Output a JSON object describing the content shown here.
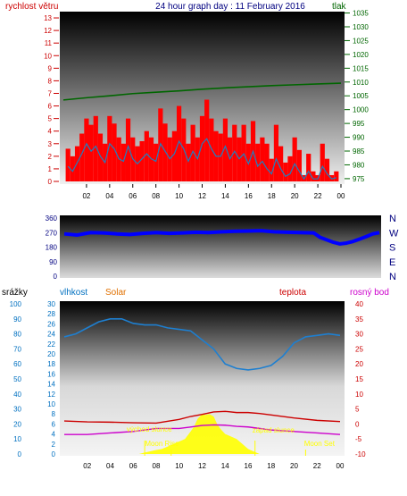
{
  "header": {
    "left": "rychlost větru",
    "title": "24 hour graph day : 11 February 2016",
    "right": "tlak"
  },
  "colors": {
    "wind_axis": "#cc0000",
    "pressure_axis": "#006600",
    "title": "#000080",
    "wind_gust": "#ff0000",
    "wind_avg": "#1f7fc0",
    "pressure": "#006600",
    "direction": "#0000ff",
    "humidity": "#1e7fd0",
    "temperature": "#cc0000",
    "dewpoint": "#cc00cc",
    "solar": "#ffff00",
    "rain": "#0000ff",
    "label_blue": "#0070c0",
    "label_orange": "#e07000",
    "label_red": "#cc0000",
    "label_magenta": "#cc00cc",
    "annot": "#ffff00"
  },
  "chart_data": [
    {
      "type": "line",
      "panel": "wind-pressure",
      "x_ticks": [
        "02",
        "04",
        "06",
        "08",
        "10",
        "12",
        "14",
        "16",
        "18",
        "20",
        "22",
        "00"
      ],
      "y_left": {
        "label": "rychlost větru",
        "ticks": [
          0,
          1,
          2,
          3,
          4,
          5,
          6,
          7,
          8,
          9,
          10,
          11,
          12,
          13
        ],
        "range": [
          0,
          13.5
        ]
      },
      "y_right": {
        "label": "tlak",
        "ticks": [
          975,
          980,
          985,
          990,
          995,
          1000,
          1005,
          1010,
          1015,
          1020,
          1025,
          1030,
          1035
        ],
        "range": [
          974,
          1035.5
        ]
      },
      "series": [
        {
          "axis": "left",
          "x": [
            0.4,
            0.8,
            1.2,
            1.6,
            2,
            2.4,
            2.8,
            3.2,
            3.6,
            4,
            4.4,
            4.8,
            5.2,
            5.6,
            6,
            6.4,
            6.8,
            7.2,
            7.6,
            8,
            8.4,
            8.8,
            9.2,
            9.6,
            10,
            10.4,
            10.8,
            11.2,
            11.6,
            12,
            12.4,
            12.8,
            13.2,
            13.6,
            14,
            14.4,
            14.8,
            15.2,
            15.6,
            16,
            16.4,
            16.8,
            17.2,
            17.6,
            18,
            18.4,
            18.8,
            19.2,
            19.6,
            20,
            20.4,
            20.8,
            21.2,
            21.6,
            22,
            22.4,
            22.8,
            23.2,
            23.6
          ],
          "values": [
            2.6,
            2.0,
            2.8,
            3.8,
            5.0,
            4.5,
            5.2,
            3.8,
            3.0,
            5.2,
            4.6,
            3.5,
            3.0,
            5.0,
            3.5,
            2.8,
            3.2,
            4.0,
            3.5,
            3.0,
            5.8,
            4.6,
            3.5,
            4.0,
            6.0,
            5.0,
            3.0,
            4.5,
            3.5,
            5.2,
            6.5,
            5.0,
            4.0,
            3.8,
            5.0,
            3.5,
            4.5,
            3.5,
            4.5,
            3.0,
            4.8,
            3.0,
            3.5,
            3.0,
            1.8,
            4.5,
            2.8,
            1.5,
            2.0,
            3.5,
            2.5,
            0.5,
            2.2,
            0.8,
            0.5,
            3.0,
            1.8,
            0.5,
            0.8
          ]
        },
        {
          "axis": "left",
          "x": [
            0.4,
            0.8,
            1.2,
            1.6,
            2,
            2.4,
            2.8,
            3.2,
            3.6,
            4,
            4.4,
            4.8,
            5.2,
            5.6,
            6,
            6.4,
            6.8,
            7.2,
            7.6,
            8,
            8.4,
            8.8,
            9.2,
            9.6,
            10,
            10.4,
            10.8,
            11.2,
            11.6,
            12,
            12.4,
            12.8,
            13.2,
            13.6,
            14,
            14.4,
            14.8,
            15.2,
            15.6,
            16,
            16.4,
            16.8,
            17.2,
            17.6,
            18,
            18.4,
            18.8,
            19.2,
            19.6,
            20,
            20.4,
            20.8,
            21.2,
            21.6,
            22,
            22.4,
            22.8,
            23.2,
            23.6
          ],
          "values": [
            1.2,
            0.8,
            1.5,
            2.2,
            3.0,
            2.4,
            2.8,
            2.0,
            1.5,
            3.0,
            2.6,
            1.8,
            1.6,
            2.8,
            1.8,
            1.4,
            1.8,
            2.2,
            1.8,
            1.6,
            3.0,
            2.4,
            1.8,
            2.2,
            3.2,
            2.6,
            1.6,
            2.4,
            1.8,
            3.0,
            3.4,
            2.6,
            2.0,
            2.0,
            2.8,
            1.8,
            2.4,
            1.8,
            2.2,
            1.4,
            2.4,
            1.2,
            1.6,
            1.0,
            0.6,
            1.8,
            1.0,
            0.4,
            0.6,
            1.4,
            0.8,
            0.2,
            0.8,
            0.2,
            0.2,
            1.2,
            0.6,
            0.2,
            0.3
          ]
        },
        {
          "axis": "right",
          "x": [
            0,
            2,
            4,
            6,
            8,
            10,
            12,
            14,
            16,
            18,
            20,
            22,
            24
          ],
          "values": [
            1003.5,
            1004.3,
            1005.0,
            1005.8,
            1006.3,
            1006.8,
            1007.4,
            1007.9,
            1008.3,
            1008.7,
            1009.0,
            1009.3,
            1009.6
          ]
        }
      ]
    },
    {
      "type": "scatter",
      "panel": "wind-direction",
      "x_ticks": [
        "02",
        "04",
        "06",
        "08",
        "10",
        "12",
        "14",
        "16",
        "18",
        "20",
        "22",
        "00"
      ],
      "y_left": {
        "ticks": [
          0,
          90,
          180,
          270,
          360
        ],
        "range": [
          0,
          360
        ]
      },
      "y_right": {
        "ticks": [
          "N",
          "W",
          "S",
          "E",
          "N"
        ]
      },
      "series": [
        {
          "x": [
            0,
            1,
            2,
            3,
            4,
            5,
            6,
            7,
            8,
            9,
            10,
            11,
            12,
            13,
            14,
            15,
            16,
            17,
            18,
            19,
            19.5,
            20,
            20.5,
            21,
            21.5,
            22,
            22.5,
            23,
            23.5,
            24
          ],
          "values": [
            262,
            255,
            270,
            268,
            262,
            258,
            265,
            270,
            265,
            268,
            272,
            270,
            275,
            278,
            280,
            282,
            275,
            272,
            270,
            268,
            240,
            225,
            210,
            200,
            205,
            215,
            230,
            245,
            262,
            270
          ]
        }
      ]
    },
    {
      "type": "line",
      "panel": "humidity-temp-solar",
      "labels": {
        "rain": "srážky",
        "humidity": "vlhkost",
        "solar": "Solar",
        "temperature": "teplota",
        "dewpoint": "rosný bod"
      },
      "x_ticks": [
        "02",
        "04",
        "06",
        "08",
        "10",
        "12",
        "14",
        "16",
        "18",
        "20",
        "22",
        "00"
      ],
      "y_rain": {
        "ticks": [
          0,
          10,
          20,
          30,
          40,
          50,
          60,
          70,
          80,
          90,
          100
        ],
        "range": [
          0,
          100
        ]
      },
      "y_humidity": {
        "ticks": [
          0,
          2,
          4,
          6,
          8,
          10,
          12,
          14,
          16,
          18,
          20,
          22,
          24,
          26,
          28,
          30
        ],
        "range": [
          0,
          30
        ]
      },
      "y_temp": {
        "ticks": [
          -10,
          -5,
          0,
          5,
          10,
          15,
          20,
          25,
          30,
          35,
          40
        ],
        "range": [
          -10,
          40
        ]
      },
      "annotations": [
        "východ slunce",
        "západ slunce",
        "Moon Rise",
        "Moon Set"
      ],
      "series": [
        {
          "axis": "rain",
          "x": [
            0,
            1,
            2,
            3,
            4,
            5,
            6,
            7,
            8,
            9,
            10,
            11,
            12,
            13,
            14,
            15,
            16,
            17,
            18,
            19,
            20,
            21,
            22,
            23,
            24
          ],
          "values": [
            78,
            80,
            84,
            88,
            90,
            90,
            87,
            86,
            86,
            84,
            83,
            82,
            76,
            70,
            60,
            57,
            56,
            57,
            59,
            65,
            74,
            78,
            79,
            80,
            79
          ]
        },
        {
          "axis": "temp",
          "x": [
            0,
            2,
            4,
            6,
            8,
            10,
            11,
            12,
            13,
            14,
            15,
            16,
            17,
            18,
            20,
            22,
            24
          ],
          "values": [
            1.0,
            0.7,
            0.6,
            0.4,
            0.3,
            1.5,
            2.5,
            3.2,
            4.0,
            4.2,
            3.8,
            3.8,
            3.5,
            3.0,
            2.0,
            1.2,
            0.8
          ]
        },
        {
          "axis": "temp",
          "x": [
            0,
            2,
            4,
            6,
            8,
            10,
            11,
            12,
            13,
            14,
            15,
            16,
            18,
            20,
            22,
            24
          ],
          "values": [
            -3.5,
            -3.5,
            -3.0,
            -2.5,
            -1.5,
            -1.5,
            -1.0,
            -0.5,
            -0.3,
            -0.4,
            -0.8,
            -1.0,
            -2.0,
            -2.5,
            -3.0,
            -3.5
          ]
        },
        {
          "axis": "humidity",
          "x": [
            6.5,
            7,
            8,
            8.5,
            9,
            9.5,
            10,
            10.5,
            11,
            11.3,
            11.6,
            12,
            12.3,
            12.6,
            13,
            13.3,
            13.6,
            14,
            14.5,
            15,
            15.5,
            16,
            16.5,
            17
          ],
          "values": [
            0,
            0.3,
            0.8,
            1.0,
            1.5,
            2.0,
            2.5,
            3.0,
            4.5,
            5.5,
            7.0,
            8.0,
            7.8,
            8.0,
            7.5,
            6.0,
            5.0,
            4.0,
            3.5,
            3.0,
            2.0,
            1.0,
            0.5,
            0
          ]
        }
      ]
    }
  ]
}
